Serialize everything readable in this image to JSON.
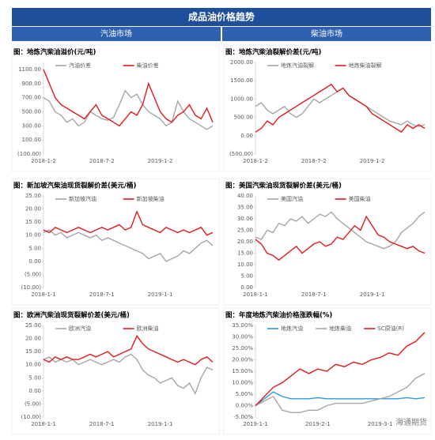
{
  "header": {
    "title": "成品油价格趋势",
    "left": "汽油市场",
    "right": "柴油市场"
  },
  "watermark": "海通期货",
  "chart_data": [
    {
      "type": "line",
      "title": "图：地炼汽柴油溢价(元/吨)",
      "categories": [
        "2018-1-2",
        null,
        null,
        null,
        null,
        null,
        null,
        null,
        null,
        null,
        "2018-7-2",
        null,
        null,
        null,
        null,
        null,
        null,
        null,
        null,
        null,
        "2019-1-2",
        null,
        null,
        null,
        null,
        null,
        null,
        null,
        null,
        null
      ],
      "series": [
        {
          "name": "汽油价差",
          "color": "#a6a6a6",
          "values": [
            700,
            650,
            500,
            450,
            350,
            400,
            300,
            350,
            500,
            450,
            400,
            380,
            420,
            600,
            800,
            700,
            750,
            600,
            500,
            450,
            400,
            300,
            350,
            650,
            500,
            400,
            350,
            300,
            250,
            300
          ]
        },
        {
          "name": "柴油价差",
          "color": "#e31a1c",
          "values": [
            1100,
            900,
            700,
            600,
            550,
            500,
            450,
            400,
            500,
            600,
            450,
            400,
            350,
            300,
            400,
            500,
            450,
            600,
            900,
            700,
            500,
            400,
            350,
            450,
            500,
            600,
            450,
            400,
            550,
            350
          ]
        }
      ],
      "ylim": [
        -100,
        1200
      ],
      "yticks": [
        {
          "value": -100,
          "label": "(100.00)"
        },
        {
          "value": 100,
          "label": "100.00"
        },
        {
          "value": 300,
          "label": "300.00"
        },
        {
          "value": 500,
          "label": "500.00"
        },
        {
          "value": 700,
          "label": "700.00"
        },
        {
          "value": 900,
          "label": "900.00"
        },
        {
          "value": 1100,
          "label": "1100.00"
        }
      ],
      "grid": false
    },
    {
      "type": "line",
      "title": "图：地炼汽柴油裂解价差(元/吨)",
      "categories": [
        "2018-1-2",
        null,
        null,
        null,
        null,
        null,
        null,
        null,
        null,
        null,
        "2018-7-2",
        null,
        null,
        null,
        null,
        null,
        null,
        null,
        null,
        null,
        "2019-1-2",
        null,
        null,
        null,
        null,
        null,
        null,
        null,
        null,
        null
      ],
      "series": [
        {
          "name": "地炼汽油裂解",
          "color": "#a6a6a6",
          "values": [
            800,
            900,
            700,
            600,
            700,
            800,
            600,
            500,
            600,
            800,
            1000,
            900,
            1000,
            1100,
            1200,
            1300,
            1100,
            1000,
            900,
            800,
            700,
            600,
            500,
            400,
            350,
            300,
            400,
            300,
            250,
            300
          ]
        },
        {
          "name": "地炼柴油裂解",
          "color": "#e31a1c",
          "values": [
            100,
            200,
            400,
            300,
            500,
            600,
            700,
            800,
            900,
            1000,
            1100,
            1200,
            1300,
            1400,
            1200,
            1300,
            1100,
            1000,
            900,
            800,
            600,
            500,
            400,
            300,
            200,
            100,
            300,
            200,
            300,
            200
          ]
        }
      ],
      "ylim": [
        -500,
        2000
      ],
      "yticks": [
        {
          "value": -500,
          "label": "(500.00)"
        },
        {
          "value": 0,
          "label": "0.00"
        },
        {
          "value": 500,
          "label": "500.00"
        },
        {
          "value": 1000,
          "label": "1000.00"
        },
        {
          "value": 1500,
          "label": "1500.00"
        },
        {
          "value": 2000,
          "label": "2000.00"
        }
      ],
      "grid": false
    },
    {
      "type": "line",
      "title": "图：新加坡汽柴油现货裂解价差(美元/桶)",
      "categories": [
        "2018-1-1",
        null,
        null,
        null,
        null,
        null,
        null,
        null,
        null,
        null,
        "2018-7-1",
        null,
        null,
        null,
        null,
        null,
        null,
        null,
        null,
        null,
        "2019-1-1",
        null,
        null,
        null,
        null,
        null,
        null,
        null,
        null,
        null
      ],
      "series": [
        {
          "name": "新加坡汽油",
          "color": "#a6a6a6",
          "values": [
            11,
            12,
            10,
            11,
            9,
            10,
            11,
            10,
            9,
            10,
            8,
            9,
            8,
            7,
            6,
            5,
            4,
            3,
            1,
            2,
            3,
            0,
            1,
            2,
            4,
            3,
            5,
            7,
            8,
            6
          ]
        },
        {
          "name": "新加坡柴油",
          "color": "#e31a1c",
          "values": [
            12,
            11,
            13,
            12,
            11,
            12,
            13,
            12,
            11,
            12,
            13,
            12,
            13,
            14,
            12,
            13,
            19,
            14,
            13,
            12,
            11,
            13,
            12,
            11,
            12,
            11,
            12,
            13,
            10,
            11
          ]
        }
      ],
      "ylim": [
        -10,
        25
      ],
      "yticks": [
        {
          "value": -10,
          "label": "(10.00)"
        },
        {
          "value": -5,
          "label": "(5.00)"
        },
        {
          "value": 0,
          "label": "0.00"
        },
        {
          "value": 5,
          "label": "5.00"
        },
        {
          "value": 10,
          "label": "10.00"
        },
        {
          "value": 15,
          "label": "15.00"
        },
        {
          "value": 20,
          "label": "20.00"
        },
        {
          "value": 25,
          "label": "25.00"
        }
      ],
      "grid": false
    },
    {
      "type": "line",
      "title": "图：美国汽柴油现货裂解价差(美元/桶)",
      "categories": [
        "2018-1-1",
        null,
        null,
        null,
        null,
        null,
        null,
        null,
        null,
        null,
        "2018-7-1",
        null,
        null,
        null,
        null,
        null,
        null,
        null,
        null,
        null,
        "2019-1-1",
        null,
        null,
        null,
        null,
        null,
        null,
        null,
        null,
        null
      ],
      "series": [
        {
          "name": "美国汽油",
          "color": "#a6a6a6",
          "values": [
            22,
            21,
            25,
            24,
            28,
            27,
            30,
            29,
            31,
            28,
            30,
            32,
            31,
            33,
            30,
            28,
            26,
            24,
            22,
            20,
            19,
            18,
            17,
            18,
            20,
            24,
            26,
            28,
            31,
            33
          ]
        },
        {
          "name": "美国柴油",
          "color": "#e31a1c",
          "values": [
            21,
            19,
            15,
            14,
            12,
            14,
            16,
            18,
            15,
            17,
            19,
            20,
            18,
            19,
            22,
            21,
            24,
            27,
            25,
            31,
            27,
            23,
            22,
            20,
            19,
            18,
            17,
            18,
            16,
            15
          ]
        }
      ],
      "ylim": [
        0,
        40
      ],
      "yticks": [
        {
          "value": 0,
          "label": "0.00"
        },
        {
          "value": 5,
          "label": "5.00"
        },
        {
          "value": 10,
          "label": "10.00"
        },
        {
          "value": 15,
          "label": "15.00"
        },
        {
          "value": 20,
          "label": "20.00"
        },
        {
          "value": 25,
          "label": "25.00"
        },
        {
          "value": 30,
          "label": "30.00"
        },
        {
          "value": 35,
          "label": "35.00"
        },
        {
          "value": 40,
          "label": "40.00"
        }
      ],
      "grid": false
    },
    {
      "type": "line",
      "title": "图：欧洲汽柴油现货裂解价差(美元/桶)",
      "categories": [
        "2018-1-1",
        null,
        null,
        null,
        null,
        null,
        null,
        null,
        null,
        null,
        "2018-7-1",
        null,
        null,
        null,
        null,
        null,
        null,
        null,
        null,
        null,
        "2019-1-1",
        null,
        null,
        null,
        null,
        null,
        null,
        null,
        null,
        null
      ],
      "series": [
        {
          "name": "欧洲汽油",
          "color": "#a6a6a6",
          "values": [
            12,
            13,
            11,
            12,
            11,
            12,
            10,
            11,
            12,
            11,
            10,
            11,
            12,
            11,
            13,
            14,
            12,
            8,
            6,
            5,
            3,
            4,
            5,
            2,
            1,
            3,
            -1,
            5,
            9,
            8
          ]
        },
        {
          "name": "欧洲柴油",
          "color": "#e31a1c",
          "values": [
            12,
            11,
            13,
            12,
            13,
            12,
            12,
            13,
            14,
            13,
            14,
            15,
            13,
            14,
            15,
            16,
            21,
            18,
            16,
            15,
            14,
            13,
            12,
            11,
            12,
            11,
            10,
            12,
            13,
            11
          ]
        }
      ],
      "ylim": [
        -10,
        25
      ],
      "yticks": [
        {
          "value": -10,
          "label": "(10.00)"
        },
        {
          "value": -5,
          "label": "(5.00)"
        },
        {
          "value": 0,
          "label": "0.00"
        },
        {
          "value": 5,
          "label": "5.00"
        },
        {
          "value": 10,
          "label": "10.00"
        },
        {
          "value": 15,
          "label": "15.00"
        },
        {
          "value": 20,
          "label": "20.00"
        },
        {
          "value": 25,
          "label": "25.00"
        }
      ],
      "grid": false
    },
    {
      "type": "line",
      "title": "图：年度地炼汽柴油价格涨跌幅(%)",
      "categories": [
        "2019-1-1",
        null,
        null,
        null,
        null,
        null,
        null,
        "2019-2-1",
        null,
        null,
        null,
        null,
        null,
        null,
        "2019-3-1",
        null,
        null,
        null,
        null,
        null
      ],
      "series": [
        {
          "name": "地炼汽油",
          "color": "#2e9bd6",
          "values": [
            0,
            3,
            6,
            4,
            3,
            3,
            3,
            3.5,
            3,
            3,
            3,
            3,
            3,
            3,
            3,
            3,
            3,
            3.5,
            3,
            3.5
          ]
        },
        {
          "name": "地炼柴油",
          "color": "#a6a6a6",
          "values": [
            0,
            2,
            4,
            -2,
            -3,
            -3,
            -2,
            -2,
            0,
            1,
            1,
            1,
            1,
            2,
            3,
            4,
            6,
            8,
            12,
            14
          ]
        },
        {
          "name": "SC原油(R)",
          "color": "#e31a1c",
          "values": [
            0,
            4,
            8,
            10,
            13,
            16,
            14,
            16,
            15,
            18,
            17,
            19,
            18,
            20,
            21,
            23,
            22,
            26,
            28,
            32
          ]
        }
      ],
      "ylim": [
        -5,
        35
      ],
      "yticks": [
        {
          "value": -5,
          "label": "-5.00%"
        },
        {
          "value": 0,
          "label": "0.00%"
        },
        {
          "value": 5,
          "label": "5.00%"
        },
        {
          "value": 10,
          "label": "10.00%"
        },
        {
          "value": 15,
          "label": "15.00%"
        },
        {
          "value": 20,
          "label": "20.00%"
        },
        {
          "value": 25,
          "label": "25.00%"
        },
        {
          "value": 30,
          "label": "30.00%"
        },
        {
          "value": 35,
          "label": "35.00%"
        }
      ],
      "grid": false
    }
  ]
}
